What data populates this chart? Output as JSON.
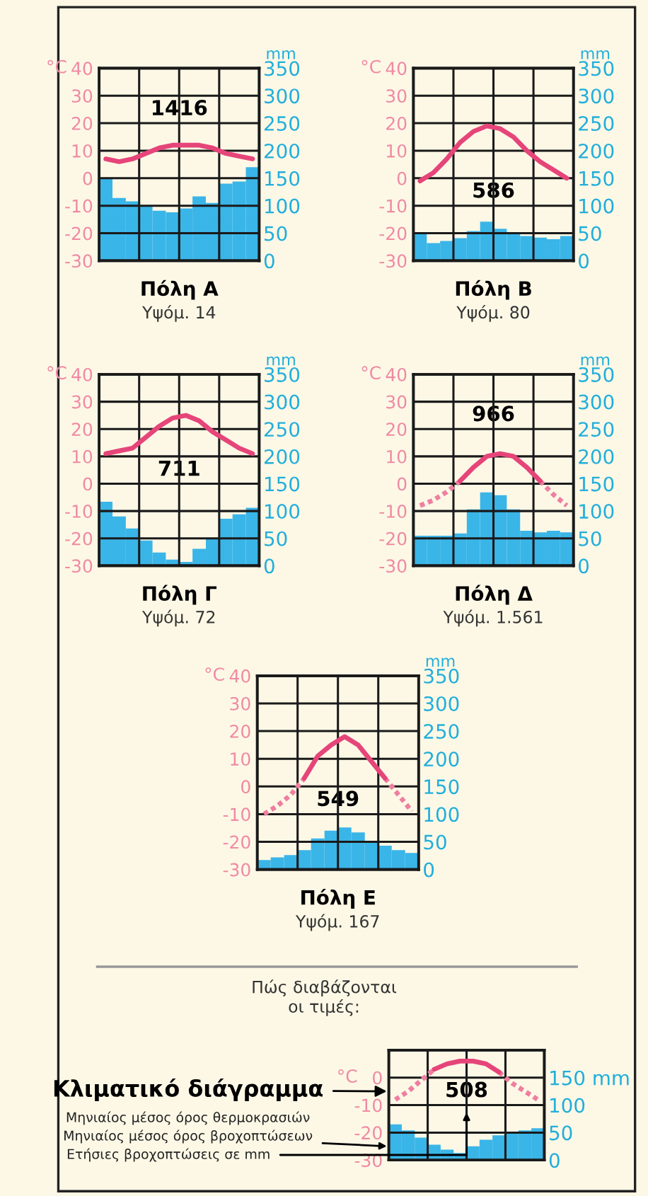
{
  "chart_data": [
    {
      "type": "bar",
      "title": "Πόλη Α",
      "subtitle": "Υψόμ. 14",
      "ylabel": "°C",
      "y2label": "mm",
      "categories": [
        null,
        null,
        null,
        null,
        null,
        null,
        null,
        null,
        null,
        null,
        null,
        null
      ],
      "series": [
        {
          "axis": "y2",
          "color": "#3ab5e8",
          "values": [
            151,
            114,
            108,
            101,
            91,
            88,
            95,
            117,
            105,
            140,
            144,
            170
          ]
        },
        {
          "type": "line",
          "color": "#e6457a",
          "line_style": "solid",
          "values": [
            7,
            6,
            7,
            9,
            11,
            12,
            12,
            12,
            11,
            9,
            8,
            7
          ]
        }
      ],
      "ylim": [
        -30,
        40
      ],
      "yticks": [
        -30,
        -20,
        -10,
        0,
        10,
        20,
        30,
        40
      ],
      "y2lim": [
        0,
        350
      ],
      "y2ticks": [
        0,
        50,
        100,
        150,
        200,
        250,
        300,
        350
      ],
      "grid": true,
      "annotations": [
        "1416"
      ]
    },
    {
      "type": "bar",
      "title": "Πόλη Β",
      "subtitle": "Υψόμ. 80",
      "ylabel": "°C",
      "y2label": "mm",
      "categories": [
        null,
        null,
        null,
        null,
        null,
        null,
        null,
        null,
        null,
        null,
        null,
        null
      ],
      "series": [
        {
          "axis": "y2",
          "color": "#3ab5e8",
          "values": [
            49,
            32,
            36,
            41,
            54,
            71,
            58,
            49,
            45,
            42,
            39,
            45
          ]
        },
        {
          "type": "line",
          "color": "#e6457a",
          "line_style": "solid",
          "values": [
            -1,
            2,
            7,
            13,
            17,
            19,
            18,
            15,
            10,
            6,
            3,
            0
          ]
        }
      ],
      "ylim": [
        -30,
        40
      ],
      "yticks": [
        -30,
        -20,
        -10,
        0,
        10,
        20,
        30,
        40
      ],
      "y2lim": [
        0,
        350
      ],
      "y2ticks": [
        0,
        50,
        100,
        150,
        200,
        250,
        300,
        350
      ],
      "grid": true,
      "annotations": [
        "586"
      ]
    },
    {
      "type": "bar",
      "title": "Πόλη Γ",
      "subtitle": "Υψόμ. 72",
      "ylabel": "°C",
      "y2label": "mm",
      "categories": [
        null,
        null,
        null,
        null,
        null,
        null,
        null,
        null,
        null,
        null,
        null,
        null
      ],
      "series": [
        {
          "axis": "y2",
          "color": "#3ab5e8",
          "values": [
            117,
            90,
            68,
            46,
            24,
            11,
            7,
            31,
            51,
            86,
            94,
            106
          ]
        },
        {
          "type": "line",
          "color": "#e6457a",
          "line_style": "solid",
          "values": [
            11,
            12,
            13,
            17,
            21,
            24,
            25,
            23,
            19,
            16,
            13,
            11
          ]
        }
      ],
      "ylim": [
        -30,
        40
      ],
      "yticks": [
        -30,
        -20,
        -10,
        0,
        10,
        20,
        30,
        40
      ],
      "y2lim": [
        0,
        350
      ],
      "y2ticks": [
        0,
        50,
        100,
        150,
        200,
        250,
        300,
        350
      ],
      "grid": true,
      "annotations": [
        "711"
      ]
    },
    {
      "type": "bar",
      "title": "Πόλη Δ",
      "subtitle": "Υψόμ. 1.561",
      "ylabel": "°C",
      "y2label": "mm",
      "categories": [
        null,
        null,
        null,
        null,
        null,
        null,
        null,
        null,
        null,
        null,
        null,
        null
      ],
      "series": [
        {
          "axis": "y2",
          "color": "#3ab5e8",
          "values": [
            55,
            55,
            55,
            59,
            103,
            134,
            129,
            103,
            64,
            61,
            64,
            61
          ]
        },
        {
          "type": "line",
          "color": "#ee7fa0",
          "line_style": "dotted",
          "values": [
            -8,
            -6,
            -3,
            1,
            null,
            null,
            null,
            null,
            null,
            null,
            null,
            null
          ]
        },
        {
          "type": "line",
          "color": "#ee7fa0",
          "line_style": "dotted",
          "values": [
            null,
            null,
            null,
            null,
            null,
            null,
            null,
            null,
            null,
            1,
            -4,
            -8
          ]
        },
        {
          "type": "line",
          "color": "#e6457a",
          "line_style": "solid",
          "values": [
            null,
            null,
            null,
            1,
            6,
            10,
            11,
            10,
            6,
            1,
            null,
            null
          ]
        }
      ],
      "ylim": [
        -30,
        40
      ],
      "yticks": [
        -30,
        -20,
        -10,
        0,
        10,
        20,
        30,
        40
      ],
      "y2lim": [
        0,
        350
      ],
      "y2ticks": [
        0,
        50,
        100,
        150,
        200,
        250,
        300,
        350
      ],
      "grid": true,
      "annotations": [
        "966"
      ]
    },
    {
      "type": "bar",
      "title": "Πόλη Ε",
      "subtitle": "Υψόμ. 167",
      "ylabel": "°C",
      "y2label": "mm",
      "categories": [
        null,
        null,
        null,
        null,
        null,
        null,
        null,
        null,
        null,
        null,
        null,
        null
      ],
      "series": [
        {
          "axis": "y2",
          "color": "#3ab5e8",
          "values": [
            17,
            22,
            26,
            35,
            56,
            70,
            76,
            67,
            52,
            43,
            35,
            30
          ]
        },
        {
          "type": "line",
          "color": "#ee7fa0",
          "line_style": "dotted",
          "values": [
            -10,
            -7,
            -3,
            3,
            null,
            null,
            null,
            null,
            null,
            null,
            null,
            null
          ]
        },
        {
          "type": "line",
          "color": "#ee7fa0",
          "line_style": "dotted",
          "values": [
            null,
            null,
            null,
            null,
            null,
            null,
            null,
            null,
            null,
            3,
            -3,
            -9
          ]
        },
        {
          "type": "line",
          "color": "#e6457a",
          "line_style": "solid",
          "values": [
            null,
            null,
            null,
            3,
            11,
            15,
            18,
            15,
            9,
            3,
            null,
            null
          ]
        }
      ],
      "ylim": [
        -30,
        40
      ],
      "yticks": [
        -30,
        -20,
        -10,
        0,
        10,
        20,
        30,
        40
      ],
      "y2lim": [
        0,
        350
      ],
      "y2ticks": [
        0,
        50,
        100,
        150,
        200,
        250,
        300,
        350
      ],
      "grid": true,
      "annotations": [
        "549"
      ]
    },
    {
      "type": "bar",
      "title": "Πώς διαβάζονται\nοι τιμές:",
      "ylabel": "°C",
      "categories": [
        null,
        null,
        null,
        null,
        null,
        null,
        null,
        null,
        null,
        null,
        null,
        null
      ],
      "series": [
        {
          "axis": "y2",
          "color": "#3ab5e8",
          "values": [
            65,
            54,
            41,
            28,
            19,
            13,
            25,
            37,
            45,
            50,
            54,
            58
          ]
        },
        {
          "type": "line",
          "color": "#ee7fa0",
          "line_style": "dotted",
          "values": [
            -8,
            -5,
            -1,
            3,
            null,
            null,
            null,
            null,
            null,
            null,
            null,
            null
          ]
        },
        {
          "type": "line",
          "color": "#ee7fa0",
          "line_style": "dotted",
          "values": [
            null,
            null,
            null,
            null,
            null,
            null,
            null,
            null,
            2,
            -2,
            -5,
            -8
          ]
        },
        {
          "type": "line",
          "color": "#e6457a",
          "line_style": "solid",
          "values": [
            null,
            null,
            null,
            3,
            5,
            6,
            6,
            5,
            2,
            null,
            null,
            null
          ]
        }
      ],
      "ylim": [
        -30,
        10
      ],
      "yticks": [
        -30,
        -20,
        -10,
        0
      ],
      "y2lim": [
        0,
        200
      ],
      "y2ticks": [
        0,
        50,
        100,
        {
          "value": 150,
          "label": "150 mm"
        }
      ],
      "grid": true,
      "annotations": [
        "508",
        "Κλιματικό διάγραμμα",
        "Μηνιαίος μέσος όρος θερμοκρασιών",
        "Μηνιαίος μέσος όρος βροχοπτώσεων",
        "Ετήσιες βροχοπτώσεις σε mm"
      ]
    }
  ]
}
